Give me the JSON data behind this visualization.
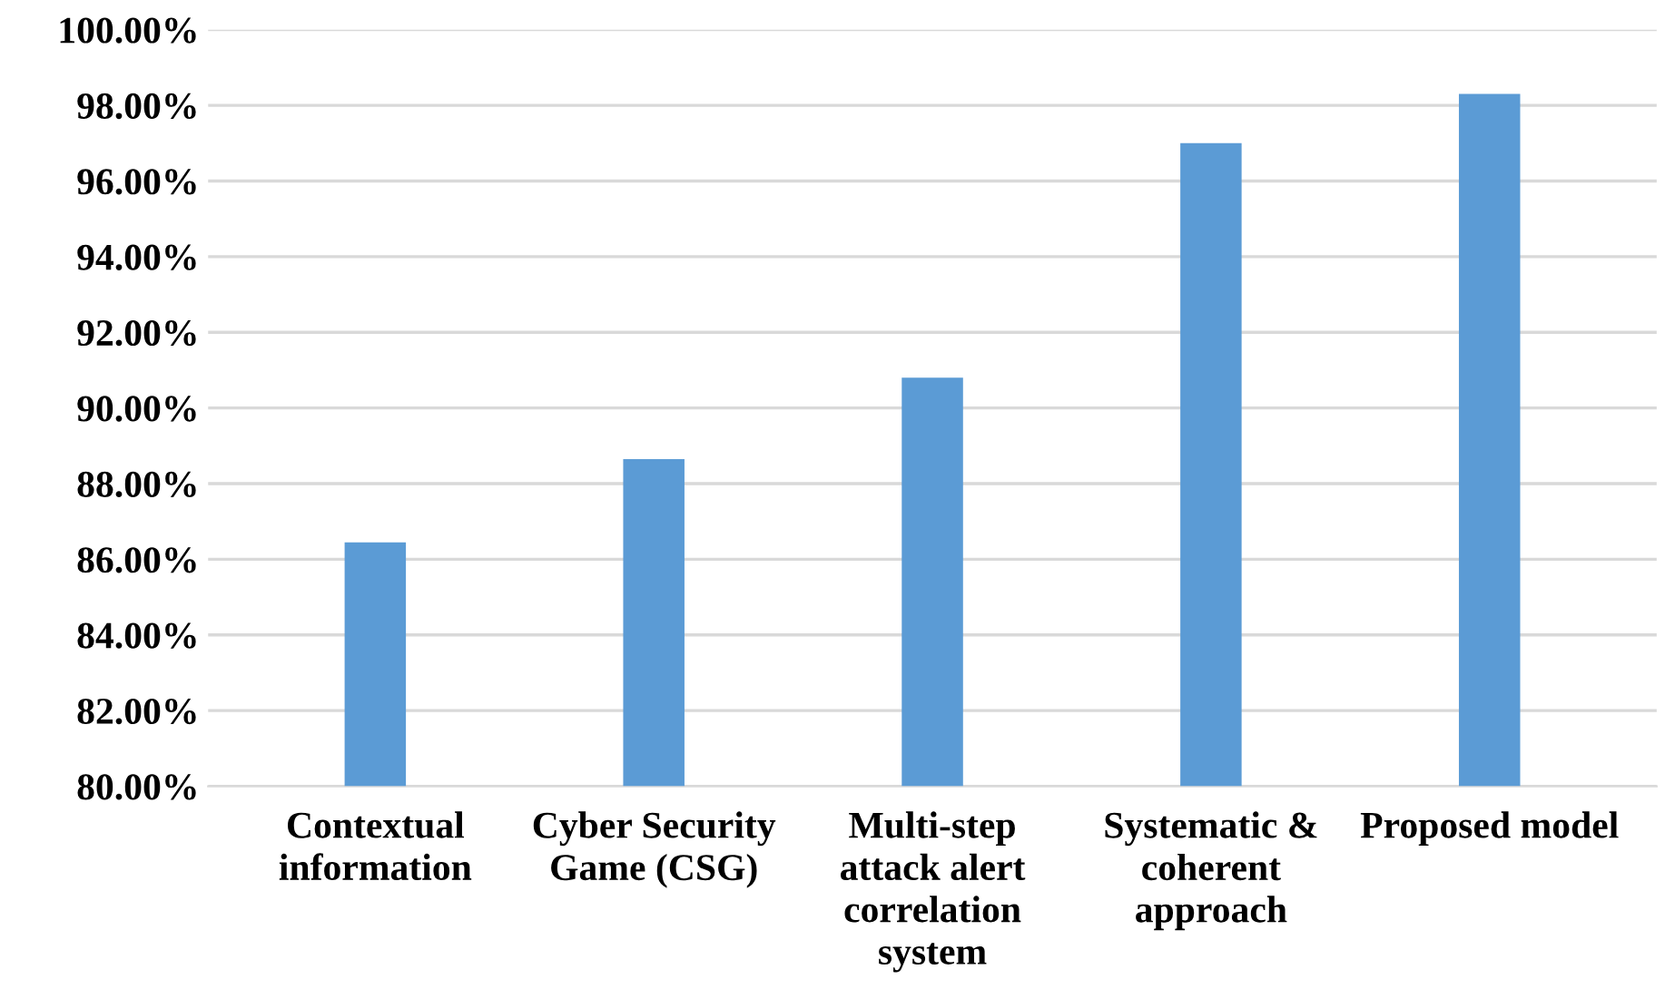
{
  "chart_data": {
    "type": "bar",
    "categories": [
      "Contextual information",
      "Cyber Security Game (CSG)",
      "Multi-step attack alert correlation system",
      "Systematic & coherent approach",
      "Proposed model"
    ],
    "values": [
      86.45,
      88.65,
      90.8,
      97.0,
      98.3
    ],
    "color": "#5b9bd5",
    "ylim": [
      80,
      100
    ],
    "yticks": [
      {
        "value": 80,
        "label": "80.00%"
      },
      {
        "value": 82,
        "label": "82.00%"
      },
      {
        "value": 84,
        "label": "84.00%"
      },
      {
        "value": 86,
        "label": "86.00%"
      },
      {
        "value": 88,
        "label": "88.00%"
      },
      {
        "value": 90,
        "label": "90.00%"
      },
      {
        "value": 92,
        "label": "92.00%"
      },
      {
        "value": 94,
        "label": "94.00%"
      },
      {
        "value": 96,
        "label": "96.00%"
      },
      {
        "value": 98,
        "label": "98.00%"
      },
      {
        "value": 100,
        "label": "100.00%"
      }
    ],
    "grid": "y"
  }
}
